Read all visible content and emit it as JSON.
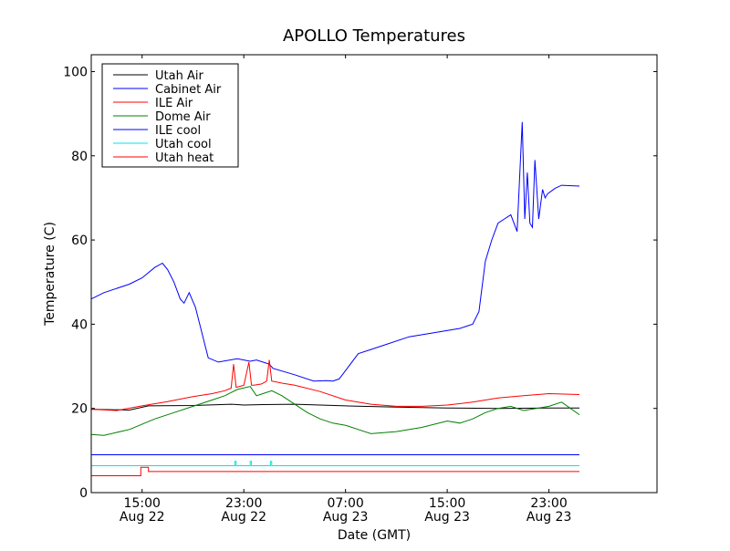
{
  "chart_data": {
    "type": "line",
    "title": "APOLLO Temperatures",
    "xlabel": "Date (GMT)",
    "ylabel": "Temperature (C)",
    "xlim": [
      11.0,
      55.5
    ],
    "ylim": [
      0,
      104
    ],
    "x_units": "hours since Aug 22 00:00 GMT",
    "yticks": [
      0,
      20,
      40,
      60,
      80,
      100
    ],
    "xticks": [
      {
        "x": 15,
        "time": "15:00",
        "date": "Aug 22"
      },
      {
        "x": 23,
        "time": "23:00",
        "date": "Aug 22"
      },
      {
        "x": 31,
        "time": "07:00",
        "date": "Aug 23"
      },
      {
        "x": 39,
        "time": "15:00",
        "date": "Aug 23"
      },
      {
        "x": 47,
        "time": "23:00",
        "date": "Aug 23"
      }
    ],
    "legend_position": "top-left",
    "series": [
      {
        "name": "Utah Air",
        "color": "#000000",
        "x": [
          11.0,
          14.0,
          15.5,
          19.0,
          22.0,
          23.0,
          24.5,
          27.0,
          31.0,
          35.0,
          39.0,
          43.0,
          47.0,
          49.4
        ],
        "y": [
          19.8,
          19.6,
          20.6,
          20.7,
          21.0,
          20.8,
          20.9,
          21.0,
          20.6,
          20.3,
          20.1,
          20.0,
          20.1,
          20.1
        ]
      },
      {
        "name": "Cabinet Air",
        "color": "#0000ff",
        "x": [
          11.0,
          12.0,
          14.0,
          15.0,
          16.0,
          16.6,
          17.0,
          17.5,
          18.0,
          18.3,
          18.7,
          19.2,
          19.7,
          20.2,
          21.0,
          22.5,
          23.5,
          24.0,
          24.5,
          25.0,
          25.3,
          27.0,
          28.5,
          29.5,
          30.0,
          30.5,
          31.0,
          32.0,
          33.0,
          34.0,
          36.0,
          38.0,
          40.0,
          41.0,
          41.5,
          42.0,
          42.5,
          43.0,
          43.5,
          44.0,
          44.5,
          44.9,
          45.1,
          45.3,
          45.5,
          45.7,
          45.9,
          46.2,
          46.5,
          46.7,
          46.9,
          47.5,
          48.0,
          49.4
        ],
        "y": [
          46,
          47.5,
          49.5,
          51,
          53.5,
          54.5,
          53,
          50,
          46,
          45,
          47.5,
          44,
          38,
          32,
          31,
          31.8,
          31.2,
          31.5,
          31,
          30.5,
          29.5,
          28,
          26.5,
          26.6,
          26.5,
          27,
          29,
          33,
          34,
          35,
          37,
          38,
          39,
          40,
          43,
          55,
          60,
          64,
          65,
          66,
          62,
          88,
          65,
          76,
          64,
          63,
          79,
          65,
          72,
          70,
          71,
          72.3,
          73,
          72.8
        ]
      },
      {
        "name": "ILE Air",
        "color": "#ff0000",
        "x": [
          11.0,
          13.0,
          15.0,
          17.0,
          19.0,
          20.5,
          21.5,
          22.0,
          22.2,
          22.4,
          23.0,
          23.4,
          23.6,
          23.8,
          24.4,
          24.8,
          25.0,
          25.2,
          26.0,
          27.0,
          29.0,
          31.0,
          33.0,
          35.0,
          37.0,
          39.0,
          41.0,
          43.0,
          45.0,
          47.0,
          49.4
        ],
        "y": [
          19.8,
          19.5,
          20.6,
          21.6,
          22.8,
          23.5,
          24.2,
          24.8,
          30.5,
          25,
          25.5,
          31.0,
          25.5,
          25.5,
          25.8,
          26.5,
          31.5,
          26.5,
          26,
          25.5,
          24,
          22,
          21,
          20.5,
          20.5,
          20.8,
          21.5,
          22.5,
          23,
          23.5,
          23.3
        ]
      },
      {
        "name": "Dome Air",
        "color": "#008000",
        "x": [
          11.0,
          12.0,
          14.0,
          16.0,
          17.5,
          19.0,
          20.5,
          21.5,
          22.5,
          23.5,
          24.0,
          24.5,
          25.2,
          26.0,
          27.0,
          28.0,
          29.0,
          30.0,
          31.0,
          32.0,
          33.0,
          35.0,
          37.0,
          39.0,
          40.0,
          41.0,
          42.0,
          43.0,
          44.0,
          45.0,
          46.0,
          47.0,
          48.0,
          49.4
        ],
        "y": [
          13.8,
          13.6,
          15.0,
          17.5,
          19.0,
          20.5,
          22.0,
          23.0,
          24.5,
          25.2,
          23.0,
          23.5,
          24.2,
          23.0,
          21.0,
          19.0,
          17.5,
          16.5,
          16.0,
          15.0,
          14.0,
          14.5,
          15.5,
          17.0,
          16.5,
          17.5,
          19.0,
          20.0,
          20.5,
          19.5,
          20.0,
          20.5,
          21.5,
          18.5
        ]
      },
      {
        "name": "ILE cool",
        "color": "#0000ff",
        "x": [
          11.0,
          49.4
        ],
        "y": [
          9.0,
          9.0
        ]
      },
      {
        "name": "Utah cool",
        "color": "#00e6e6",
        "x": [
          11.0,
          22.2,
          22.3,
          22.4,
          23.4,
          23.5,
          23.6,
          25.0,
          25.1,
          25.2,
          49.4
        ],
        "y": [
          6.4,
          6.4,
          7.4,
          6.4,
          6.4,
          7.4,
          6.4,
          6.4,
          7.4,
          6.4,
          6.4
        ],
        "step": true
      },
      {
        "name": "Utah heat",
        "color": "#ff0000",
        "x": [
          11.0,
          14.9,
          15.5,
          49.4
        ],
        "y": [
          4.0,
          6.0,
          5.0,
          5.0
        ],
        "step": true
      }
    ]
  }
}
